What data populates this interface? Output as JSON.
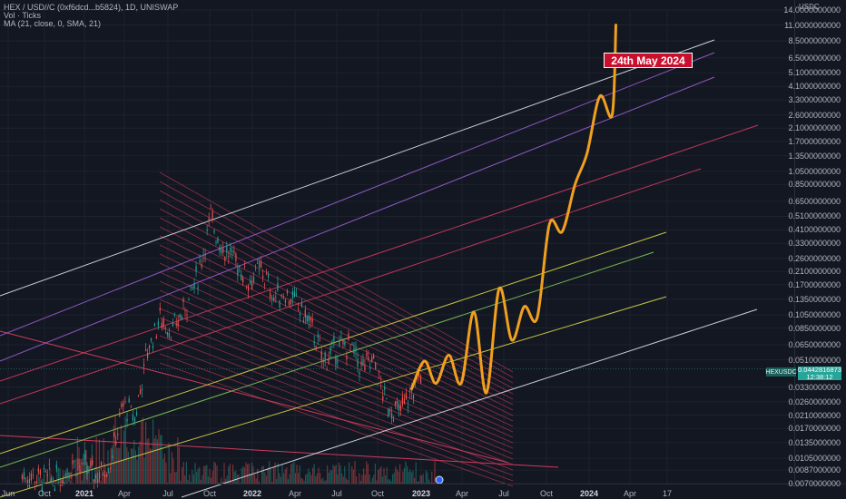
{
  "chart_data": {
    "type": "line",
    "title": "HEX / USD//C (0xf6dcd...b5824), 1D, UNISWAP",
    "indicators": [
      "Vol · Ticks",
      "MA (21, close, 0, SMA, 21)"
    ],
    "y_unit": "USDC",
    "y_scale": "log",
    "ylim": [
      0.007,
      14.0
    ],
    "y_ticks": [
      "14.0000000000",
      "11.0000000000",
      "8.5000000000",
      "6.5000000000",
      "5.1000000000",
      "4.1000000000",
      "3.3000000000",
      "2.6000000000",
      "2.1000000000",
      "1.7000000000",
      "1.3500000000",
      "1.0500000000",
      "0.8500000000",
      "0.6500000000",
      "0.5100000000",
      "0.4100000000",
      "0.3300000000",
      "0.2600000000",
      "0.2100000000",
      "0.1700000000",
      "0.1350000000",
      "0.1050000000",
      "0.0850000000",
      "0.0650000000",
      "0.0510000000",
      "0.0330000000",
      "0.0260000000",
      "0.0210000000",
      "0.0170000000",
      "0.0135000000",
      "0.0105000000",
      "0.0087000000",
      "0.0070000000"
    ],
    "x_ticks": [
      {
        "label": "Jun",
        "bold": false
      },
      {
        "label": "Oct",
        "bold": false
      },
      {
        "label": "2021",
        "bold": true
      },
      {
        "label": "Apr",
        "bold": false
      },
      {
        "label": "Jul",
        "bold": false
      },
      {
        "label": "Oct",
        "bold": false
      },
      {
        "label": "2022",
        "bold": true
      },
      {
        "label": "Apr",
        "bold": false
      },
      {
        "label": "Jul",
        "bold": false
      },
      {
        "label": "Oct",
        "bold": false
      },
      {
        "label": "2023",
        "bold": true
      },
      {
        "label": "Apr",
        "bold": false
      },
      {
        "label": "Jul",
        "bold": false
      },
      {
        "label": "Oct",
        "bold": false
      },
      {
        "label": "2024",
        "bold": true
      },
      {
        "label": "Apr",
        "bold": false
      },
      {
        "label": "17",
        "bold": false
      }
    ],
    "symbol": "HEXUSDC",
    "last_price": "0.0442816873",
    "countdown": "12:38:12",
    "annotation": "24th May 2024",
    "price_history": [
      [
        "2020-06",
        0.008
      ],
      [
        "2020-09",
        0.0075
      ],
      [
        "2020-10",
        0.01
      ],
      [
        "2020-11",
        0.009
      ],
      [
        "2020-12",
        0.008
      ],
      [
        "2021-01",
        0.01
      ],
      [
        "2021-02",
        0.025
      ],
      [
        "2021-03",
        0.02
      ],
      [
        "2021-04",
        0.06
      ],
      [
        "2021-05",
        0.1
      ],
      [
        "2021-06",
        0.08
      ],
      [
        "2021-07",
        0.12
      ],
      [
        "2021-08",
        0.2
      ],
      [
        "2021-09",
        0.5
      ],
      [
        "2021-10",
        0.3
      ],
      [
        "2021-11",
        0.25
      ],
      [
        "2021-12",
        0.18
      ],
      [
        "2022-01",
        0.22
      ],
      [
        "2022-02",
        0.14
      ],
      [
        "2022-03",
        0.15
      ],
      [
        "2022-04",
        0.12
      ],
      [
        "2022-05",
        0.09
      ],
      [
        "2022-06",
        0.05
      ],
      [
        "2022-07",
        0.06
      ],
      [
        "2022-08",
        0.065
      ],
      [
        "2022-09",
        0.045
      ],
      [
        "2022-10",
        0.05
      ],
      [
        "2022-11",
        0.025
      ],
      [
        "2022-12",
        0.022
      ],
      [
        "2023-01",
        0.03
      ],
      [
        "2023-02",
        0.044
      ]
    ],
    "projection": [
      [
        "2023-01",
        0.032
      ],
      [
        "2023-02",
        0.05
      ],
      [
        "2023-03",
        0.035
      ],
      [
        "2023-04",
        0.055
      ],
      [
        "2023-05",
        0.035
      ],
      [
        "2023-06",
        0.11
      ],
      [
        "2023-07",
        0.03
      ],
      [
        "2023-08",
        0.16
      ],
      [
        "2023-09",
        0.07
      ],
      [
        "2023-10",
        0.12
      ],
      [
        "2023-11",
        0.1
      ],
      [
        "2023-12",
        0.45
      ],
      [
        "2024-01",
        0.4
      ],
      [
        "2024-02",
        0.85
      ],
      [
        "2024-03",
        1.4
      ],
      [
        "2024-04",
        3.5
      ],
      [
        "2024-05",
        2.6
      ],
      [
        "2024-05-24",
        11.0
      ]
    ]
  },
  "colors": {
    "background": "#131722",
    "projection": "#f0a01e",
    "annotation_bg": "#c8102e",
    "up_candle": "#26a69a",
    "down_candle": "#ef5350",
    "upper_channel": "#e0e3eb",
    "fan_lines": "#d13b5c",
    "mid_channel_yellow": "#d8d648",
    "mid_channel_green": "#7ec95a",
    "mid_channel_purple": "#9a5fd4"
  }
}
